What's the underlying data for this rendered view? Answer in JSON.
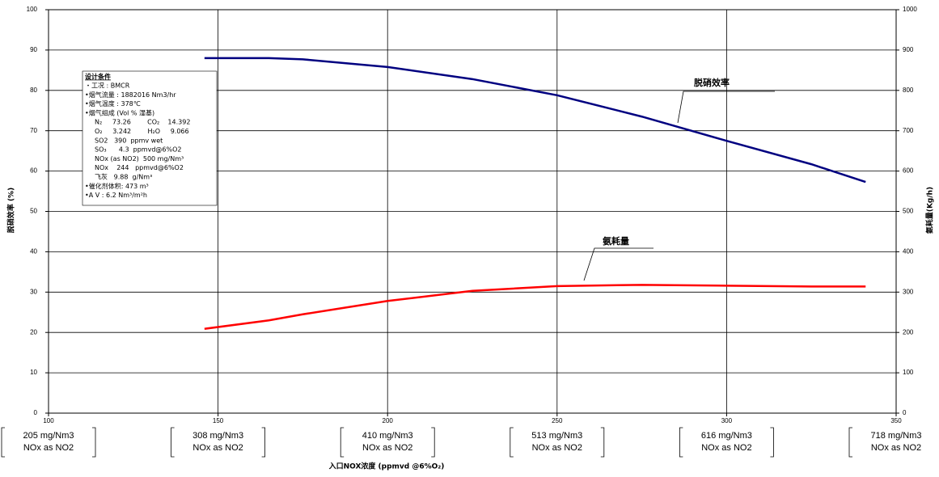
{
  "chart_data": {
    "type": "line",
    "x_label": "入口NOX浓度 (ppmvd @6%O₂)",
    "y_label": "脱硝效率 (%)",
    "y2_label": "氨耗量(Kg/h)",
    "xlim": [
      100,
      350
    ],
    "xticks": [
      100,
      150,
      200,
      250,
      300,
      350
    ],
    "ylim": [
      0,
      100
    ],
    "yticks": [
      0,
      10,
      20,
      30,
      40,
      50,
      60,
      70,
      80,
      90,
      100
    ],
    "y2lim": [
      0,
      1000
    ],
    "y2ticks": [
      0,
      100,
      200,
      300,
      400,
      500,
      600,
      700,
      800,
      900,
      1000
    ],
    "grid": true,
    "x": [
      146,
      165,
      175,
      200,
      225,
      250,
      275,
      300,
      325,
      341
    ],
    "series": [
      {
        "name": "脱硝效率",
        "color": "#000080",
        "values": [
          88,
          88,
          87.7,
          85.8,
          82.8,
          78.8,
          73.5,
          67.5,
          61.7,
          57.3
        ]
      },
      {
        "name": "氨耗量",
        "color": "#ff0000",
        "axis": "y2",
        "values": [
          209,
          230,
          245,
          278,
          303,
          315,
          318,
          316,
          314,
          314
        ]
      }
    ],
    "bottom_labels": [
      [
        "205 mg/Nm3",
        "NOx as NO2"
      ],
      [
        "308 mg/Nm3",
        "NOx as NO2"
      ],
      [
        "410 mg/Nm3",
        "NOx as NO2"
      ],
      [
        "513 mg/Nm3",
        "NOx as NO2"
      ],
      [
        "616 mg/Nm3",
        "NOx as NO2"
      ],
      [
        "718 mg/Nm3",
        "NOx as NO2"
      ]
    ],
    "design_box": {
      "title": "设计条件",
      "lines": [
        "・工况 : BMCR",
        "•烟气流量 : 1882016 Nm3/hr",
        "•烟气温度 : 378℃",
        "•烟气组成 (Vol % 湿基)",
        "N₂     73.26        CO₂    14.392",
        "O₂     3.242        H₂O     9.066",
        "SO2   390  ppmv wet",
        "SO₃      4.3  ppmvd@6%O2",
        "NOx (as NO2)  500 mg/Nm³",
        "NOx    244   ppmvd@6%O2",
        "飞灰   9.88  g/Nm³",
        "•催化剂体积: 473 m³",
        "•A V : 6.2 Nm³/m²h"
      ]
    }
  }
}
